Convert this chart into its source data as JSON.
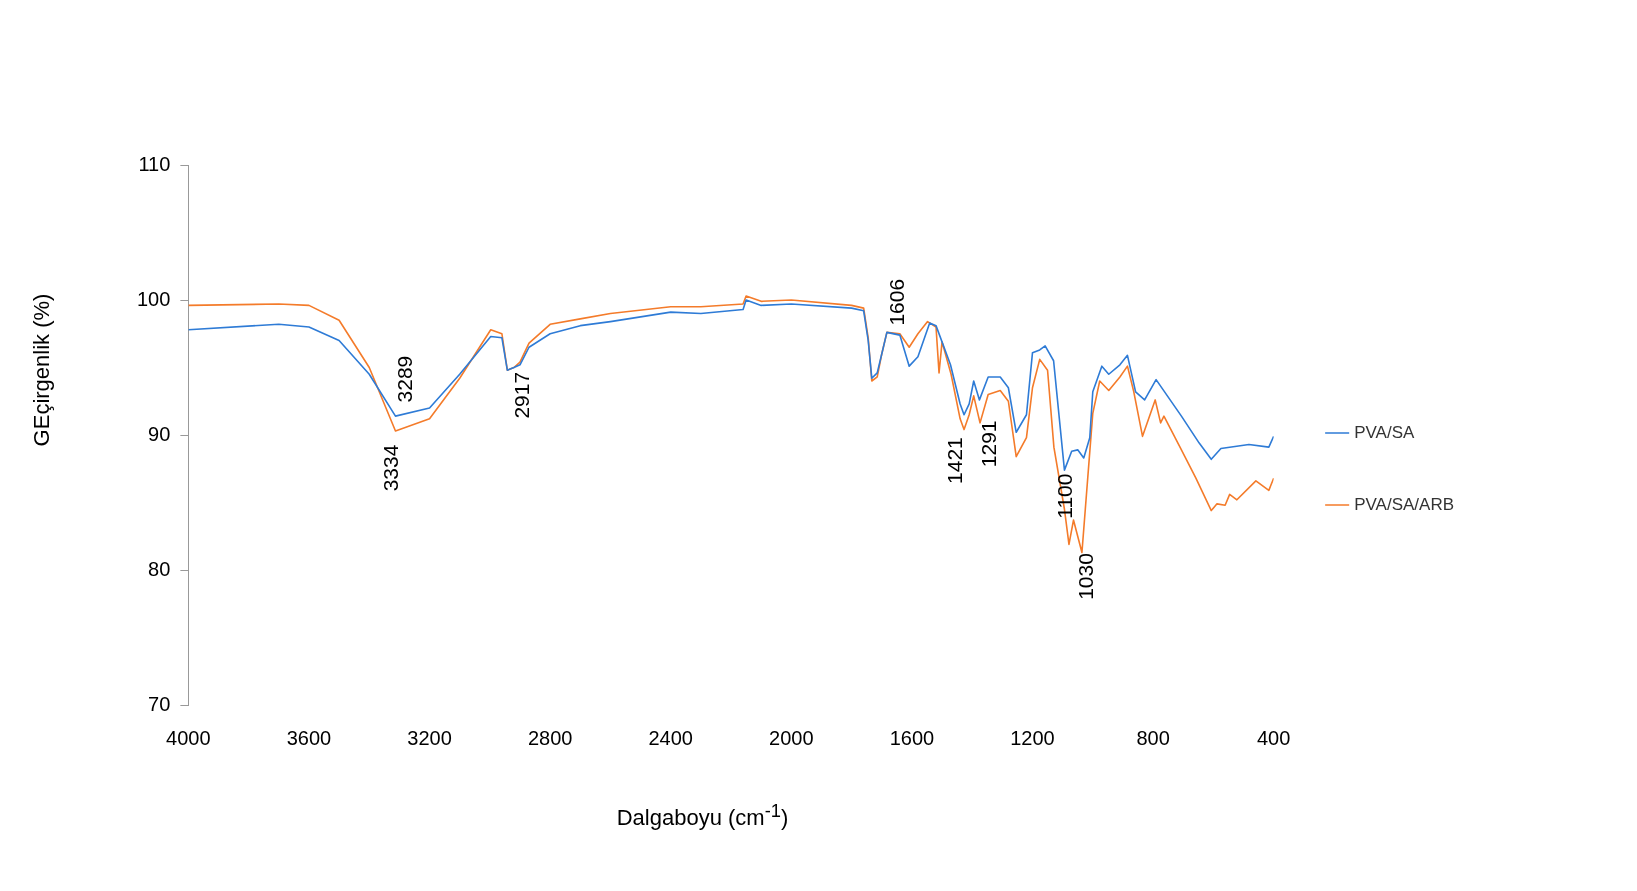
{
  "chart_data": {
    "type": "line",
    "xlabel": "Dalgaboyu (cm$^{-1}$)",
    "ylabel": "GEçirgenlik (%)",
    "xlim": [
      4000,
      400
    ],
    "xticks": [
      4000,
      3600,
      3200,
      2800,
      2400,
      2000,
      1600,
      1200,
      800,
      400
    ],
    "ylim": [
      70,
      110
    ],
    "yticks": [
      70,
      80,
      90,
      100,
      110
    ],
    "grid": false,
    "legend": "right",
    "marker": "none",
    "line_style": "solid",
    "series": [
      {
        "name": "PVA/SA",
        "color": "#2e7bd6",
        "x": [
          4000,
          3700,
          3600,
          3500,
          3400,
          3313,
          3200,
          3100,
          2997,
          2960,
          2942,
          2920,
          2900,
          2870,
          2800,
          2700,
          2600,
          2400,
          2300,
          2160,
          2150,
          2100,
          2000,
          1800,
          1760,
          1745,
          1733,
          1715,
          1700,
          1683,
          1640,
          1609,
          1580,
          1541,
          1520,
          1472,
          1440,
          1427,
          1410,
          1395,
          1376,
          1347,
          1307,
          1280,
          1254,
          1220,
          1200,
          1176,
          1158,
          1130,
          1094,
          1070,
          1050,
          1030,
          1010,
          1000,
          970,
          947,
          910,
          885,
          858,
          828,
          790,
          706,
          647,
          607,
          575,
          482,
          416,
          400
        ],
        "values": [
          97.8,
          98.2,
          98.0,
          97.0,
          94.5,
          91.4,
          92.0,
          94.5,
          97.3,
          97.2,
          94.8,
          95.0,
          95.2,
          96.5,
          97.5,
          98.1,
          98.4,
          99.1,
          99.0,
          99.3,
          100.0,
          99.6,
          99.7,
          99.4,
          99.2,
          97.0,
          94.2,
          94.6,
          96.0,
          97.6,
          97.4,
          95.1,
          95.8,
          98.3,
          98.1,
          95.2,
          92.3,
          91.5,
          92.3,
          94.0,
          92.6,
          94.3,
          94.3,
          93.5,
          90.2,
          91.5,
          96.1,
          96.3,
          96.6,
          95.5,
          87.4,
          88.8,
          88.9,
          88.3,
          89.8,
          93.2,
          95.1,
          94.5,
          95.2,
          95.9,
          93.2,
          92.6,
          94.1,
          91.4,
          89.4,
          88.2,
          89.0,
          89.3,
          89.1,
          89.9
        ]
      },
      {
        "name": "PVA/SA/ARB",
        "color": "#f47b2a",
        "x": [
          4000,
          3700,
          3600,
          3500,
          3400,
          3313,
          3200,
          3100,
          2997,
          2960,
          2942,
          2920,
          2900,
          2870,
          2800,
          2700,
          2600,
          2400,
          2300,
          2160,
          2150,
          2100,
          2000,
          1800,
          1760,
          1745,
          1733,
          1715,
          1700,
          1683,
          1640,
          1609,
          1580,
          1548,
          1520,
          1510,
          1500,
          1470,
          1440,
          1427,
          1410,
          1395,
          1374,
          1347,
          1307,
          1280,
          1254,
          1220,
          1200,
          1176,
          1150,
          1129,
          1094,
          1079,
          1064,
          1036,
          1000,
          977,
          947,
          910,
          885,
          864,
          835,
          793,
          775,
          764,
          706,
          658,
          607,
          588,
          561,
          546,
          522,
          459,
          416,
          400
        ],
        "values": [
          99.6,
          99.7,
          99.6,
          98.5,
          95.0,
          90.3,
          91.2,
          94.2,
          97.8,
          97.5,
          94.8,
          95.0,
          95.4,
          96.8,
          98.2,
          98.6,
          99.0,
          99.5,
          99.5,
          99.7,
          100.3,
          99.9,
          100.0,
          99.6,
          99.4,
          97.2,
          94.0,
          94.3,
          96.0,
          97.6,
          97.5,
          96.5,
          97.5,
          98.4,
          98.0,
          94.6,
          96.9,
          94.5,
          91.2,
          90.4,
          91.5,
          92.9,
          90.9,
          93.0,
          93.3,
          92.5,
          88.4,
          89.8,
          93.5,
          95.6,
          94.8,
          89.1,
          84.5,
          81.9,
          83.7,
          81.3,
          91.6,
          94.0,
          93.3,
          94.3,
          95.1,
          93.2,
          89.9,
          92.6,
          90.9,
          91.4,
          88.9,
          86.8,
          84.4,
          84.9,
          84.8,
          85.6,
          85.2,
          86.6,
          85.9,
          86.8
        ]
      }
    ],
    "annotations": [
      {
        "text": "3334",
        "x": 3313,
        "y": 90.3
      },
      {
        "text": "3289",
        "x": 3313,
        "y": 91.4
      },
      {
        "text": "2917",
        "x": 2942,
        "y": 94.8
      },
      {
        "text": "1606",
        "x": 1609,
        "y": 96.5
      },
      {
        "text": "1421",
        "x": 1427,
        "y": 90.4
      },
      {
        "text": "1291",
        "x": 1374,
        "y": 90.9
      },
      {
        "text": "1100",
        "x": 1094,
        "y": 87.4
      },
      {
        "text": "1030",
        "x": 1036,
        "y": 81.3
      }
    ]
  }
}
